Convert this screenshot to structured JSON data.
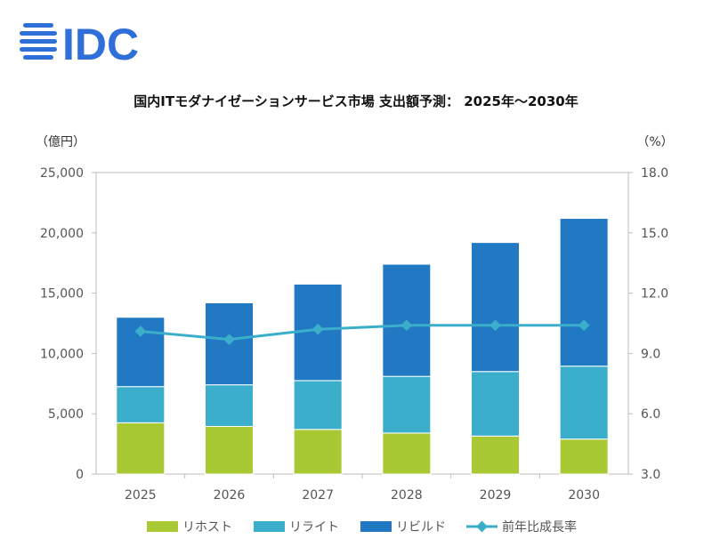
{
  "logo": {
    "text": "IDC",
    "color": "#2f6fd8"
  },
  "chart_data": {
    "type": "bar",
    "stacked": true,
    "title": "国内ITモダナイゼーションサービス市場 支出額予測： 2025年～2030年",
    "left_unit": "（億円）",
    "right_unit": "（%）",
    "categories": [
      "2025",
      "2026",
      "2027",
      "2028",
      "2029",
      "2030"
    ],
    "ylim": [
      0,
      25000
    ],
    "y_ticks": [
      "0",
      "5,000",
      "10,000",
      "15,000",
      "20,000",
      "25,000"
    ],
    "y2lim": [
      3.0,
      18.0
    ],
    "y2_ticks": [
      "3.0",
      "6.0",
      "9.0",
      "12.0",
      "15.0",
      "18.0"
    ],
    "series": [
      {
        "name": "リホスト",
        "color": "#a9c934",
        "values": [
          4250,
          3950,
          3700,
          3400,
          3150,
          2900
        ]
      },
      {
        "name": "リライト",
        "color": "#3aaecb",
        "values": [
          3000,
          3450,
          4050,
          4700,
          5350,
          6050
        ]
      },
      {
        "name": "リビルド",
        "color": "#2079c2",
        "values": [
          5750,
          6800,
          8000,
          9300,
          10700,
          12250
        ]
      }
    ],
    "line": {
      "name": "前年比成長率",
      "color": "#3aaecb",
      "values": [
        10.1,
        9.7,
        10.2,
        10.4,
        10.4,
        10.4
      ]
    },
    "legend_position": "bottom",
    "grid": false
  }
}
